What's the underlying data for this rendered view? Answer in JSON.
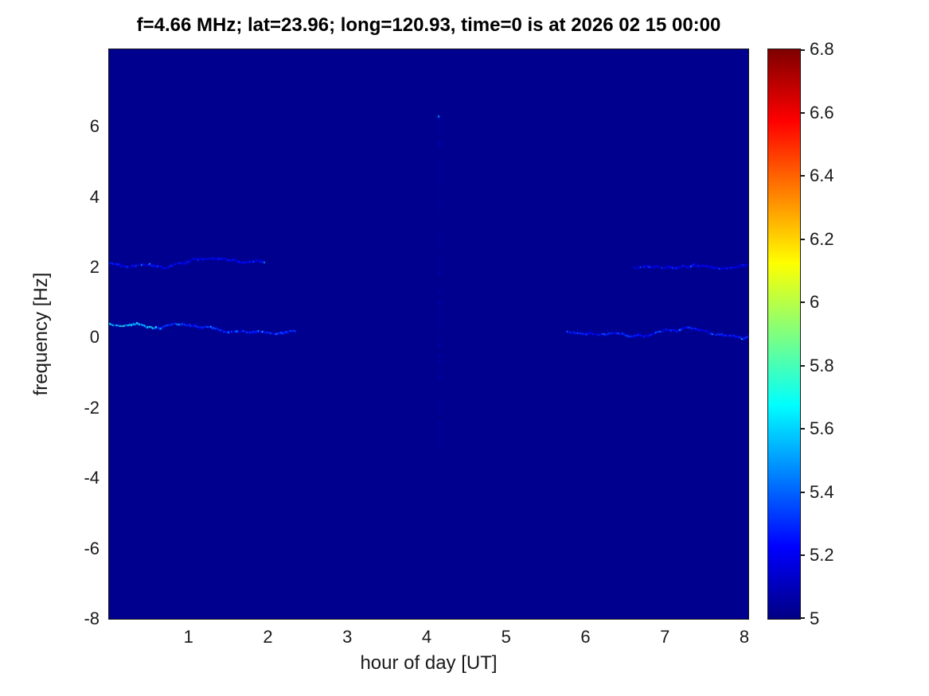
{
  "chart_data": {
    "type": "heatmap",
    "title": "f=4.66 MHz;  lat=23.96; long=120.93, time=0 is at 2026 02 15 00:00",
    "xlabel": "hour of day [UT]",
    "ylabel": "frequency [Hz]",
    "xlim": [
      0,
      8.05
    ],
    "ylim": [
      -8,
      8.2
    ],
    "xticks": [
      "1",
      "2",
      "3",
      "4",
      "5",
      "6",
      "7",
      "8"
    ],
    "xtick_values": [
      1,
      2,
      3,
      4,
      5,
      6,
      7,
      8
    ],
    "yticks": [
      "6",
      "4",
      "2",
      "0",
      "-2",
      "-4",
      "-6",
      "-8"
    ],
    "ytick_values": [
      6,
      4,
      2,
      0,
      -2,
      -4,
      -6,
      -8
    ],
    "grid": false,
    "legend": "none",
    "background_value": 5.02,
    "colorbar": {
      "min": 5,
      "max": 6.8,
      "ticks": [
        "5",
        "5.2",
        "5.4",
        "5.6",
        "5.8",
        "6",
        "6.2",
        "6.4",
        "6.6",
        "6.8"
      ],
      "tick_values": [
        5,
        5.2,
        5.4,
        5.6,
        5.8,
        6,
        6.2,
        6.4,
        6.6,
        6.8
      ],
      "colormap": "jet",
      "stops": [
        {
          "p": 0.0,
          "c": [
            0,
            0,
            132
          ]
        },
        {
          "p": 0.125,
          "c": [
            0,
            0,
            255
          ]
        },
        {
          "p": 0.375,
          "c": [
            0,
            255,
            255
          ]
        },
        {
          "p": 0.625,
          "c": [
            255,
            255,
            0
          ]
        },
        {
          "p": 0.875,
          "c": [
            255,
            0,
            0
          ]
        },
        {
          "p": 1.0,
          "c": [
            128,
            0,
            0
          ]
        }
      ]
    },
    "features": [
      {
        "kind": "hline",
        "y": 2.12,
        "x0": 0.0,
        "x1": 1.95,
        "base": 5.1,
        "var": 0.2,
        "spike": 0.3,
        "drift": -0.1,
        "density": 0.95,
        "head": false
      },
      {
        "kind": "hline",
        "y": 0.42,
        "x0": 0.0,
        "x1": 2.35,
        "base": 5.14,
        "var": 0.24,
        "spike": 0.45,
        "drift": -0.18,
        "density": 0.97,
        "head": true
      },
      {
        "kind": "hline",
        "y": 2.02,
        "x0": 6.6,
        "x1": 8.05,
        "base": 5.1,
        "var": 0.18,
        "spike": 0.3,
        "drift": -0.06,
        "density": 0.9,
        "head": false
      },
      {
        "kind": "hline",
        "y": 0.2,
        "x0": 5.75,
        "x1": 8.05,
        "base": 5.12,
        "var": 0.22,
        "spike": 0.4,
        "drift": -0.1,
        "density": 0.92,
        "head": false
      },
      {
        "kind": "vline",
        "x": 4.15,
        "y0": -3.2,
        "y1": 6.4,
        "base": 5.06,
        "var": 0.1,
        "density": 0.45
      },
      {
        "kind": "dot",
        "x": 4.15,
        "y": 6.3,
        "value": 5.45
      }
    ]
  }
}
